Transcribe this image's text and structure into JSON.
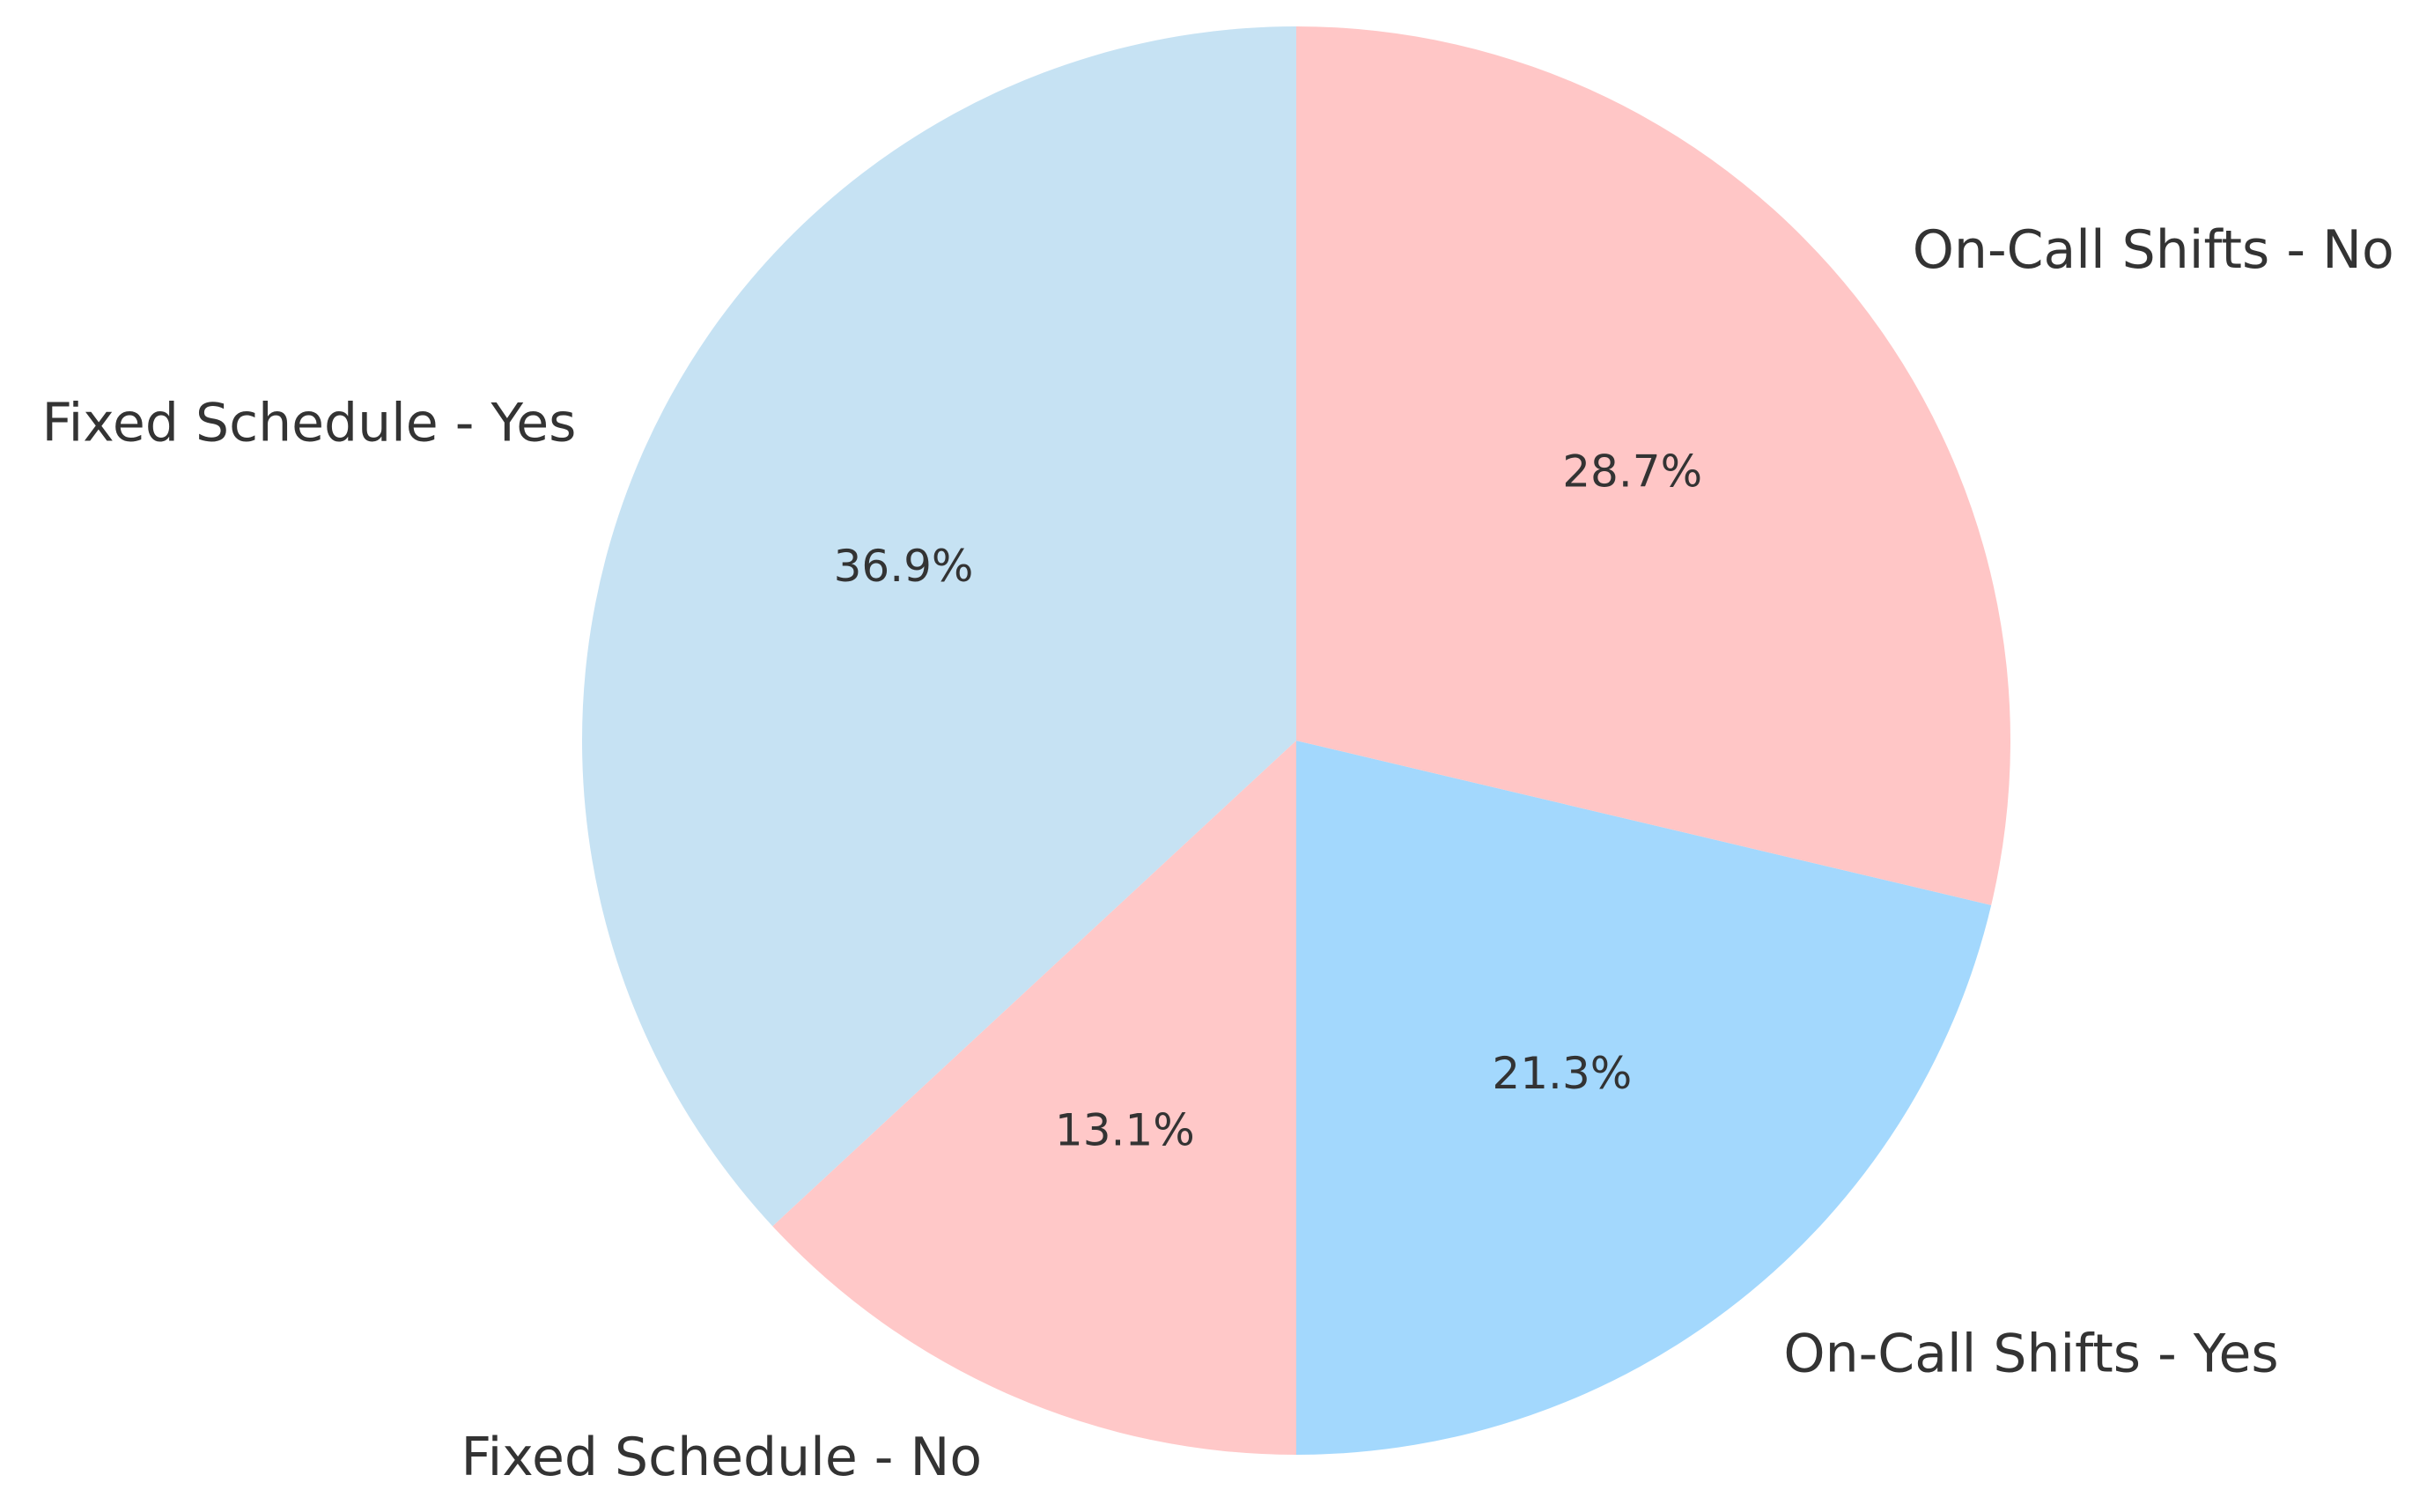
{
  "chart_data": {
    "type": "pie",
    "categories": [
      "Fixed Schedule - Yes",
      "Fixed Schedule - No",
      "On-Call Shifts - Yes",
      "On-Call Shifts - No"
    ],
    "values": [
      36.9,
      13.1,
      21.3,
      28.7
    ],
    "value_labels": [
      "36.9%",
      "13.1%",
      "21.3%",
      "28.7%"
    ],
    "colors": [
      "#c6e2f3",
      "#ffc8c8",
      "#a3d8fd",
      "#ffc6c6"
    ]
  }
}
